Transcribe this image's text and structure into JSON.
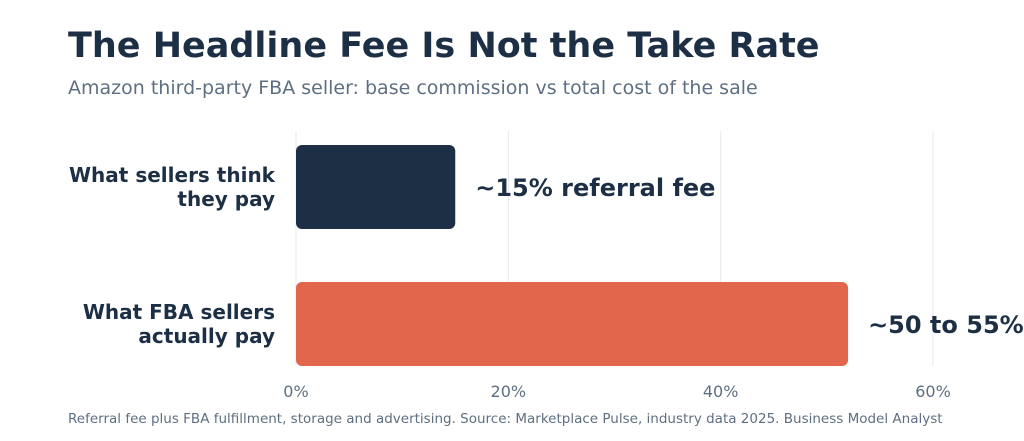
{
  "chart_data": {
    "type": "bar",
    "orientation": "horizontal",
    "title": "The Headline Fee Is Not the Take Rate",
    "subtitle": "Amazon third-party FBA seller: base commission vs total cost of the sale",
    "categories": [
      [
        "What sellers think",
        "they pay"
      ],
      [
        "What FBA sellers",
        "actually pay"
      ]
    ],
    "values": [
      15,
      52
    ],
    "value_labels": [
      "~15% referral fee",
      "~50 to 55%"
    ],
    "colors": [
      "#1c2f45",
      "#e2664c"
    ],
    "xlim": [
      0,
      60
    ],
    "x_ticks": [
      0,
      20,
      40,
      60
    ],
    "x_tick_labels": [
      "0%",
      "20%",
      "40%",
      "60%"
    ],
    "grid": true,
    "xlabel": "",
    "ylabel": "",
    "footnote": "Referral fee plus FBA fulfillment, storage and advertising. Source: Marketplace Pulse, industry data 2025. Business Model Analyst"
  }
}
